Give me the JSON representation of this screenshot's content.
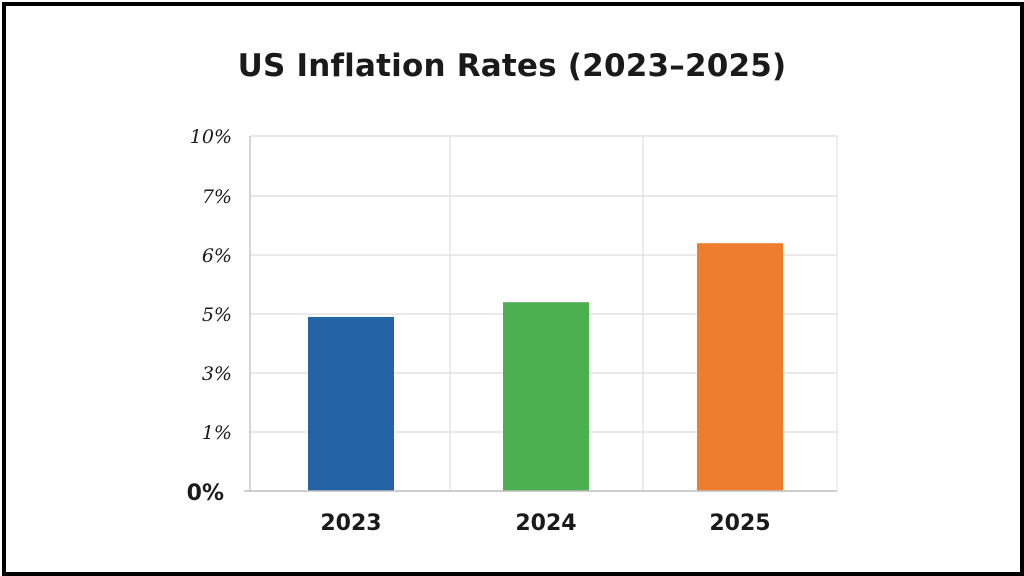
{
  "chart_data": {
    "type": "bar",
    "title": "US Inflation Rates (2023–2025)",
    "xlabel": "",
    "ylabel": "",
    "categories": [
      "2023",
      "2024",
      "2025"
    ],
    "values": [
      4.9,
      5.2,
      6.2
    ],
    "y_tick_labels": [
      "0%",
      "1%",
      "3%",
      "5%",
      "6%",
      "7%",
      "10%"
    ],
    "bar_colors": [
      "#2463a6",
      "#4caf50",
      "#ef7d2e"
    ],
    "grid": true,
    "legend": "none"
  }
}
